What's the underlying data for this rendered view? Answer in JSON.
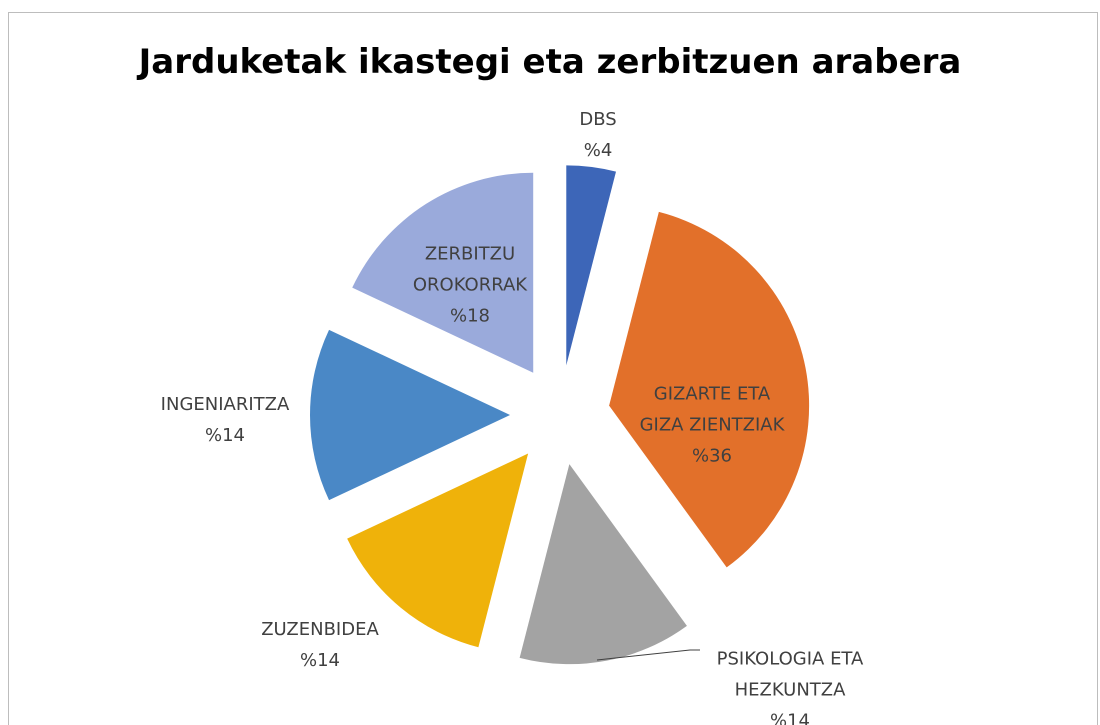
{
  "chart_data": {
    "type": "pie",
    "title": "Jarduketak ikastegi eta zerbitzuen arabera",
    "categories": [
      "DBS",
      "GIZARTE ETA GIZA ZIENTZIAK",
      "PSIKOLOGIA ETA HEZKUNTZA",
      "ZUZENBIDEA",
      "INGENIARITZA",
      "ZERBITZU OROKORRAK"
    ],
    "values": [
      4,
      36,
      14,
      14,
      14,
      18
    ],
    "value_labels": [
      "%4",
      "%36",
      "%14",
      "%14",
      "%14",
      "%18"
    ],
    "colors": [
      "#3d66b8",
      "#e2702a",
      "#a3a3a3",
      "#efb20a",
      "#4a88c6",
      "#9aaadb"
    ]
  }
}
